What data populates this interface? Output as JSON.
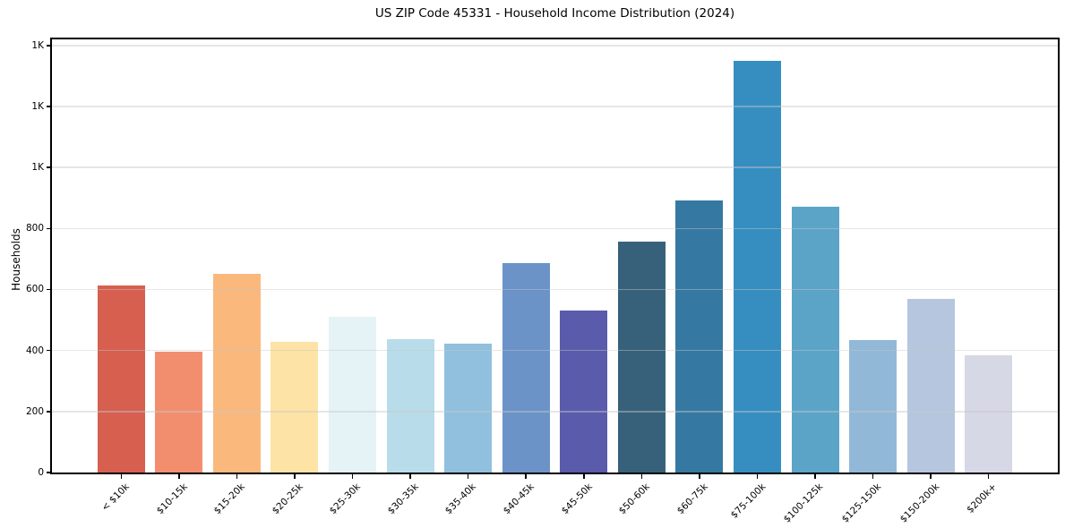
{
  "chart_data": {
    "type": "bar",
    "title": "US ZIP Code 45331 - Household Income Distribution (2024)",
    "xlabel": "",
    "ylabel": "Households",
    "categories": [
      "< $10k",
      "$10-15k",
      "$15-20k",
      "$20-25k",
      "$25-30k",
      "$30-35k",
      "$35-40k",
      "$40-45k",
      "$45-50k",
      "$50-60k",
      "$60-75k",
      "$75-100k",
      "$100-125k",
      "$125-150k",
      "$150-200k",
      "$200k+"
    ],
    "values": [
      614,
      396,
      651,
      428,
      512,
      436,
      423,
      687,
      531,
      756,
      892,
      1351,
      871,
      434,
      568,
      383
    ],
    "bar_colors": [
      "#d65f50",
      "#f28e6e",
      "#fab87d",
      "#fde3a5",
      "#e5f2f6",
      "#b9dcea",
      "#90c0dd",
      "#6b93c8",
      "#5a5bab",
      "#37617a",
      "#3579a2",
      "#368ec0",
      "#5ba4c8",
      "#92b8d8",
      "#b5c6de",
      "#d7d8e6"
    ],
    "ylim": [
      0,
      1420
    ],
    "yticks": [
      {
        "value": 0,
        "label": "0"
      },
      {
        "value": 200,
        "label": "200"
      },
      {
        "value": 400,
        "label": "400"
      },
      {
        "value": 600,
        "label": "600"
      },
      {
        "value": 800,
        "label": "800"
      },
      {
        "value": 1000,
        "label": "1K"
      },
      {
        "value": 1200,
        "label": "1K"
      },
      {
        "value": 1400,
        "label": "1K"
      }
    ],
    "grid": true,
    "legend_position": "none",
    "colors": {
      "background": "#ffffff",
      "axis": "#000000",
      "gridline": "#e6e6e6",
      "text": "#000000"
    }
  }
}
